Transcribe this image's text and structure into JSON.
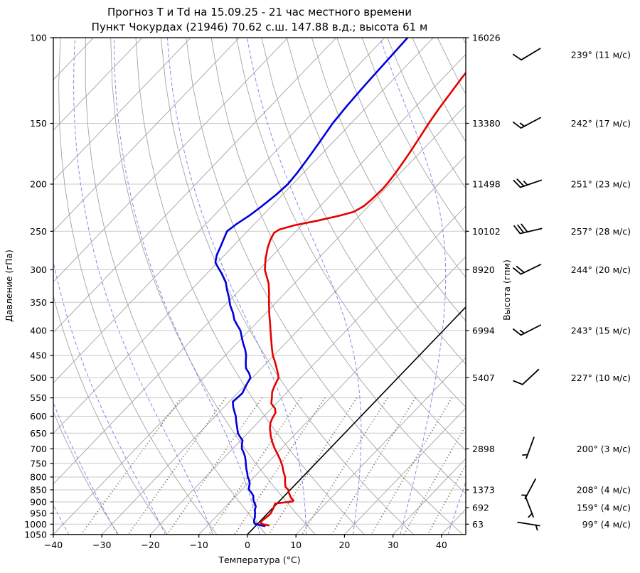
{
  "title": {
    "line1": "Прогноз Т и Td на 15.09.25 - 21 час местного времени",
    "line2": "Пункт Чокурдах (21946) 70.62 с.ш. 147.88 в.д.; высота 61 м"
  },
  "axes": {
    "x_label": "Температура (°C)",
    "y_label": "Давление (гПа)",
    "y2_label": "Высота (гпм)"
  },
  "colors": {
    "temperature": "#e60000",
    "dewpoint": "#0000dd",
    "isobar": "#c9c9c9",
    "isoline": "#a3a3a3",
    "moist_adiabat": "#8888ee",
    "mixing_ratio": "#8c564b",
    "zero_isotherm": "#000000",
    "wind_label": "#808080",
    "barb": "#000000",
    "spine": "#000000"
  },
  "chart_data": {
    "type": "line",
    "projection": "skew-t-log-p",
    "x_axis": {
      "label": "Температура (°C)",
      "min": -40,
      "max": 45,
      "ticks": [
        -40,
        -30,
        -20,
        -10,
        0,
        10,
        20,
        30,
        40
      ]
    },
    "y_axis": {
      "label": "Давление (гПа)",
      "scale": "log",
      "min": 100,
      "max": 1050,
      "ticks": [
        100,
        150,
        200,
        250,
        300,
        350,
        400,
        450,
        500,
        550,
        600,
        650,
        700,
        750,
        800,
        850,
        900,
        950,
        1000,
        1050
      ]
    },
    "y2_axis": {
      "label": "Высота (гпм)",
      "heights": [
        {
          "p": 100,
          "label": "16026"
        },
        {
          "p": 150,
          "label": "13380"
        },
        {
          "p": 200,
          "label": "11498"
        },
        {
          "p": 250,
          "label": "10102"
        },
        {
          "p": 300,
          "label": "8920"
        },
        {
          "p": 400,
          "label": "6994"
        },
        {
          "p": 500,
          "label": "5407"
        },
        {
          "p": 700,
          "label": "2898"
        },
        {
          "p": 850,
          "label": "1373"
        },
        {
          "p": 925,
          "label": "692"
        },
        {
          "p": 1000,
          "label": "63"
        }
      ]
    },
    "series": [
      {
        "name": "Температура (T)",
        "color": "#e60000",
        "points": [
          [
            1006,
            2.6
          ],
          [
            998,
            0.6
          ],
          [
            985,
            0.3
          ],
          [
            975,
            0.4
          ],
          [
            960,
            0.6
          ],
          [
            950,
            0.6
          ],
          [
            935,
            0.3
          ],
          [
            925,
            0.1
          ],
          [
            915,
            -0.2
          ],
          [
            907,
            -0.4
          ],
          [
            903,
            1.0
          ],
          [
            898,
            2.8
          ],
          [
            893,
            2.7
          ],
          [
            885,
            1.9
          ],
          [
            875,
            1.2
          ],
          [
            862,
            0.3
          ],
          [
            850,
            -0.4
          ],
          [
            838,
            -1.6
          ],
          [
            825,
            -2.3
          ],
          [
            812,
            -3.0
          ],
          [
            800,
            -3.6
          ],
          [
            780,
            -5.0
          ],
          [
            760,
            -6.3
          ],
          [
            740,
            -7.8
          ],
          [
            720,
            -9.5
          ],
          [
            700,
            -11.3
          ],
          [
            680,
            -13.0
          ],
          [
            660,
            -14.6
          ],
          [
            650,
            -15.3
          ],
          [
            635,
            -16.4
          ],
          [
            620,
            -17.3
          ],
          [
            605,
            -17.9
          ],
          [
            590,
            -18.3
          ],
          [
            578,
            -19.3
          ],
          [
            565,
            -21.0
          ],
          [
            550,
            -22.0
          ],
          [
            535,
            -23.1
          ],
          [
            520,
            -23.8
          ],
          [
            510,
            -24.2
          ],
          [
            500,
            -24.6
          ],
          [
            488,
            -25.8
          ],
          [
            475,
            -27.2
          ],
          [
            462,
            -28.7
          ],
          [
            450,
            -30.2
          ],
          [
            435,
            -31.8
          ],
          [
            420,
            -33.4
          ],
          [
            400,
            -35.6
          ],
          [
            385,
            -37.3
          ],
          [
            370,
            -39.1
          ],
          [
            350,
            -41.5
          ],
          [
            335,
            -43.3
          ],
          [
            320,
            -45.3
          ],
          [
            300,
            -48.8
          ],
          [
            285,
            -50.8
          ],
          [
            270,
            -52.6
          ],
          [
            260,
            -53.6
          ],
          [
            252,
            -54.2
          ],
          [
            248,
            -53.8
          ],
          [
            243,
            -51.5
          ],
          [
            238,
            -47.8
          ],
          [
            232,
            -44.0
          ],
          [
            228,
            -41.9
          ],
          [
            222,
            -41.0
          ],
          [
            215,
            -40.7
          ],
          [
            205,
            -40.5
          ],
          [
            200,
            -40.6
          ],
          [
            190,
            -41.0
          ],
          [
            180,
            -41.6
          ],
          [
            170,
            -42.3
          ],
          [
            160,
            -43.1
          ],
          [
            150,
            -44.0
          ],
          [
            140,
            -44.8
          ],
          [
            130,
            -45.5
          ],
          [
            122,
            -46.1
          ],
          [
            114,
            -46.6
          ]
        ]
      },
      {
        "name": "Точка росы (Td)",
        "color": "#0000dd",
        "points": [
          [
            1009,
            1.9
          ],
          [
            1003,
            0.3
          ],
          [
            998,
            -0.6
          ],
          [
            990,
            -1.1
          ],
          [
            980,
            -1.5
          ],
          [
            970,
            -1.8
          ],
          [
            958,
            -2.3
          ],
          [
            950,
            -2.6
          ],
          [
            940,
            -3.1
          ],
          [
            930,
            -3.5
          ],
          [
            920,
            -3.8
          ],
          [
            910,
            -4.4
          ],
          [
            900,
            -5.1
          ],
          [
            888,
            -5.8
          ],
          [
            875,
            -6.4
          ],
          [
            862,
            -7.4
          ],
          [
            850,
            -8.5
          ],
          [
            838,
            -9.1
          ],
          [
            825,
            -9.6
          ],
          [
            812,
            -10.4
          ],
          [
            800,
            -11.3
          ],
          [
            785,
            -12.2
          ],
          [
            770,
            -13.2
          ],
          [
            755,
            -14.1
          ],
          [
            740,
            -15.0
          ],
          [
            725,
            -16.0
          ],
          [
            710,
            -17.2
          ],
          [
            700,
            -18.1
          ],
          [
            685,
            -19.0
          ],
          [
            673,
            -19.6
          ],
          [
            660,
            -21.0
          ],
          [
            650,
            -22.0
          ],
          [
            638,
            -22.9
          ],
          [
            625,
            -23.9
          ],
          [
            612,
            -24.9
          ],
          [
            600,
            -25.8
          ],
          [
            588,
            -26.9
          ],
          [
            575,
            -28.1
          ],
          [
            560,
            -29.3
          ],
          [
            548,
            -29.1
          ],
          [
            538,
            -29.0
          ],
          [
            528,
            -29.4
          ],
          [
            515,
            -29.9
          ],
          [
            500,
            -30.4
          ],
          [
            490,
            -31.5
          ],
          [
            478,
            -33.2
          ],
          [
            465,
            -34.4
          ],
          [
            450,
            -35.7
          ],
          [
            438,
            -37.0
          ],
          [
            425,
            -38.7
          ],
          [
            412,
            -40.3
          ],
          [
            400,
            -41.8
          ],
          [
            390,
            -43.5
          ],
          [
            380,
            -45.2
          ],
          [
            368,
            -46.8
          ],
          [
            355,
            -48.9
          ],
          [
            342,
            -50.7
          ],
          [
            330,
            -52.6
          ],
          [
            318,
            -54.4
          ],
          [
            305,
            -57.0
          ],
          [
            298,
            -58.6
          ],
          [
            290,
            -60.4
          ],
          [
            280,
            -61.6
          ],
          [
            270,
            -62.4
          ],
          [
            260,
            -63.3
          ],
          [
            250,
            -64.2
          ],
          [
            242,
            -63.7
          ],
          [
            232,
            -62.7
          ],
          [
            222,
            -62.0
          ],
          [
            210,
            -61.3
          ],
          [
            200,
            -61.0
          ],
          [
            190,
            -61.3
          ],
          [
            178,
            -61.9
          ],
          [
            165,
            -62.7
          ],
          [
            150,
            -63.8
          ],
          [
            138,
            -64.3
          ],
          [
            125,
            -64.7
          ],
          [
            112,
            -65.0
          ],
          [
            100,
            -65.3
          ]
        ]
      }
    ],
    "winds": [
      {
        "p": 100,
        "dir_deg": 239,
        "speed_ms": 11,
        "label": "239° (11 м/с)"
      },
      {
        "p": 150,
        "dir_deg": 242,
        "speed_ms": 17,
        "label": "242° (17 м/с)"
      },
      {
        "p": 200,
        "dir_deg": 251,
        "speed_ms": 23,
        "label": "251° (23 м/с)"
      },
      {
        "p": 250,
        "dir_deg": 257,
        "speed_ms": 28,
        "label": "257° (28 м/с)"
      },
      {
        "p": 300,
        "dir_deg": 244,
        "speed_ms": 20,
        "label": "244° (20 м/с)"
      },
      {
        "p": 400,
        "dir_deg": 243,
        "speed_ms": 15,
        "label": "243° (15 м/с)"
      },
      {
        "p": 500,
        "dir_deg": 227,
        "speed_ms": 10,
        "label": "227° (10 м/с)"
      },
      {
        "p": 700,
        "dir_deg": 200,
        "speed_ms": 3,
        "label": "200° (3 м/с)"
      },
      {
        "p": 850,
        "dir_deg": 208,
        "speed_ms": 4,
        "label": "208° (4 м/с)"
      },
      {
        "p": 925,
        "dir_deg": 159,
        "speed_ms": 4,
        "label": "159° (4 м/с)"
      },
      {
        "p": 1000,
        "dir_deg": 99,
        "speed_ms": 4,
        "label": "99° (4 м/с)"
      }
    ],
    "background": {
      "isobars": {
        "min": 100,
        "max": 1050,
        "step": 50
      },
      "isotherms": {
        "min": -130,
        "max": 40,
        "step": 10,
        "highlight_value": 0
      },
      "dry_adiabats": {
        "min": -30,
        "max": 160,
        "step": 10
      },
      "moist_adiabats": {
        "min": -60,
        "max": 40,
        "step": 10
      },
      "mixing_ratio_g_kg": [
        0.2,
        0.5,
        1,
        2,
        3,
        5,
        8,
        12,
        20,
        30,
        40
      ],
      "mixing_ratio_p_top": 550
    }
  }
}
